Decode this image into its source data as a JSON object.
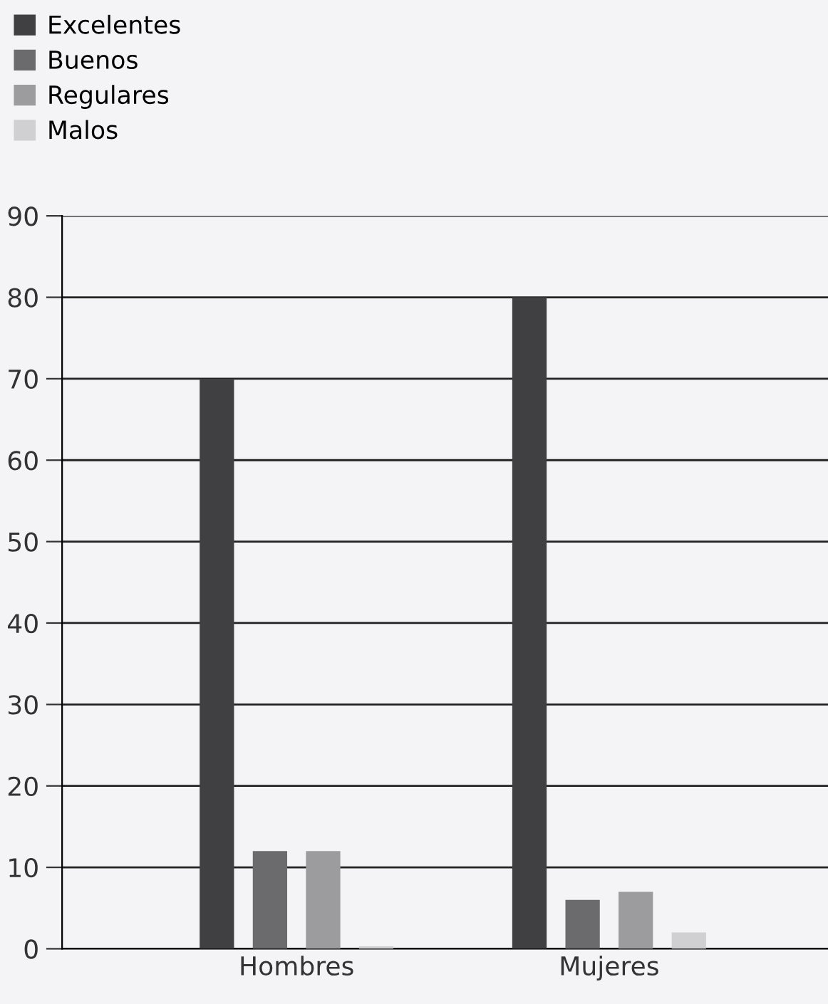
{
  "chart_data": {
    "type": "bar",
    "categories": [
      "Hombres",
      "Mujeres"
    ],
    "series": [
      {
        "name": "Excelentes",
        "color": "#404043",
        "values": [
          70,
          80
        ]
      },
      {
        "name": "Buenos",
        "color": "#6b6b6e",
        "values": [
          12,
          6
        ]
      },
      {
        "name": "Regulares",
        "color": "#9c9c9f",
        "values": [
          12,
          7
        ]
      },
      {
        "name": "Malos",
        "color": "#d0d0d3",
        "values": [
          0.3,
          2
        ]
      }
    ],
    "ylim": [
      0,
      90
    ],
    "yticks": [
      0,
      10,
      20,
      30,
      40,
      50,
      60,
      70,
      80,
      90
    ],
    "grid": "y",
    "legend": "top left"
  }
}
